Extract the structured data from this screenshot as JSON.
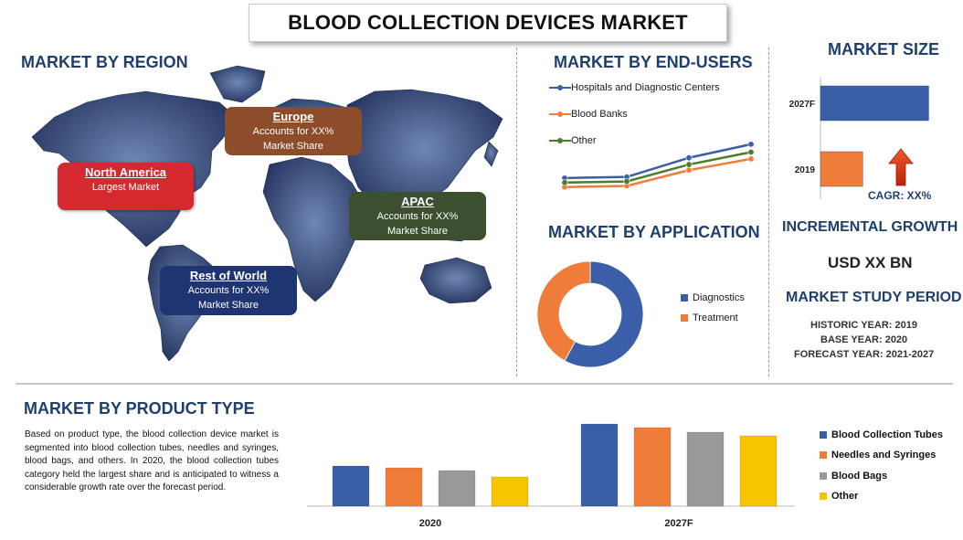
{
  "title": "BLOOD COLLECTION DEVICES MARKET",
  "headings": {
    "region": "MARKET BY REGION",
    "end_users": "MARKET BY END-USERS",
    "size": "MARKET SIZE",
    "application": "MARKET BY APPLICATION",
    "incremental": "INCREMENTAL GROWTH",
    "study": "MARKET STUDY PERIOD",
    "product": "MARKET BY PRODUCT TYPE"
  },
  "regions": [
    {
      "name": "North America",
      "text": "Largest Market",
      "color": "#d42a2f"
    },
    {
      "name": "Europe",
      "text": "Accounts for XX% Market Share",
      "color": "#8d4d2a"
    },
    {
      "name": "APAC",
      "text": "Accounts for XX% Market Share",
      "color": "#3c5030"
    },
    {
      "name": "Rest of World",
      "text": "Accounts for XX% Market Share",
      "color": "#1f3571"
    }
  ],
  "incremental_value": "USD XX BN",
  "study_period": {
    "historic": "HISTORIC YEAR: 2019",
    "base": "BASE YEAR: 2020",
    "forecast": "FORECAST YEAR: 2021-2027"
  },
  "cagr": "CAGR: XX%",
  "product_paragraph": "Based on product type, the blood collection device market is segmented into blood collection tubes, needles and syringes, blood bags, and others. In 2020, the blood collection tubes category held the largest share and is anticipated to witness a considerable growth rate over the forecast period.",
  "colors": {
    "blue": "#3a5ea8",
    "orange": "#f07c3a",
    "gray": "#9a9a9a",
    "yellow": "#f7c400",
    "green": "#4a7d2c",
    "heading": "#1f3f6e"
  },
  "chart_data": [
    {
      "type": "line",
      "title": "MARKET BY END-USERS",
      "x": [
        1,
        2,
        3,
        4
      ],
      "series": [
        {
          "name": "Hospitals and Diagnostic Centers",
          "values": [
            22,
            23,
            40,
            52
          ],
          "color": "#3a5ea8"
        },
        {
          "name": "Blood Banks",
          "values": [
            14,
            15,
            29,
            39
          ],
          "color": "#f07c3a"
        },
        {
          "name": "Other",
          "values": [
            18,
            19,
            34,
            45
          ],
          "color": "#4a7d2c"
        }
      ],
      "legend": "top-left",
      "grid": false
    },
    {
      "type": "bar",
      "orientation": "horizontal",
      "title": "MARKET SIZE",
      "categories": [
        "2027F",
        "2019"
      ],
      "values": [
        110,
        43
      ],
      "colors": [
        "#3a5ea8",
        "#f07c3a"
      ]
    },
    {
      "type": "pie",
      "subtype": "donut",
      "title": "MARKET BY APPLICATION",
      "labels": [
        "Diagnostics",
        "Treatment"
      ],
      "values": [
        58,
        42
      ],
      "colors": [
        "#3a5ea8",
        "#f07c3a"
      ],
      "legend": "right"
    },
    {
      "type": "bar",
      "title": "MARKET BY PRODUCT TYPE",
      "categories": [
        "2020",
        "2027F"
      ],
      "series": [
        {
          "name": "Blood Collection Tubes",
          "values": [
            44,
            90
          ],
          "color": "#3a5ea8"
        },
        {
          "name": "Needles and Syringes",
          "values": [
            42,
            86
          ],
          "color": "#f07c3a"
        },
        {
          "name": "Blood Bags",
          "values": [
            39,
            81
          ],
          "color": "#9a9a9a"
        },
        {
          "name": "Other",
          "values": [
            32,
            77
          ],
          "color": "#f7c400"
        }
      ],
      "ylim": [
        0,
        100
      ],
      "legend": "right",
      "grid": false
    }
  ]
}
